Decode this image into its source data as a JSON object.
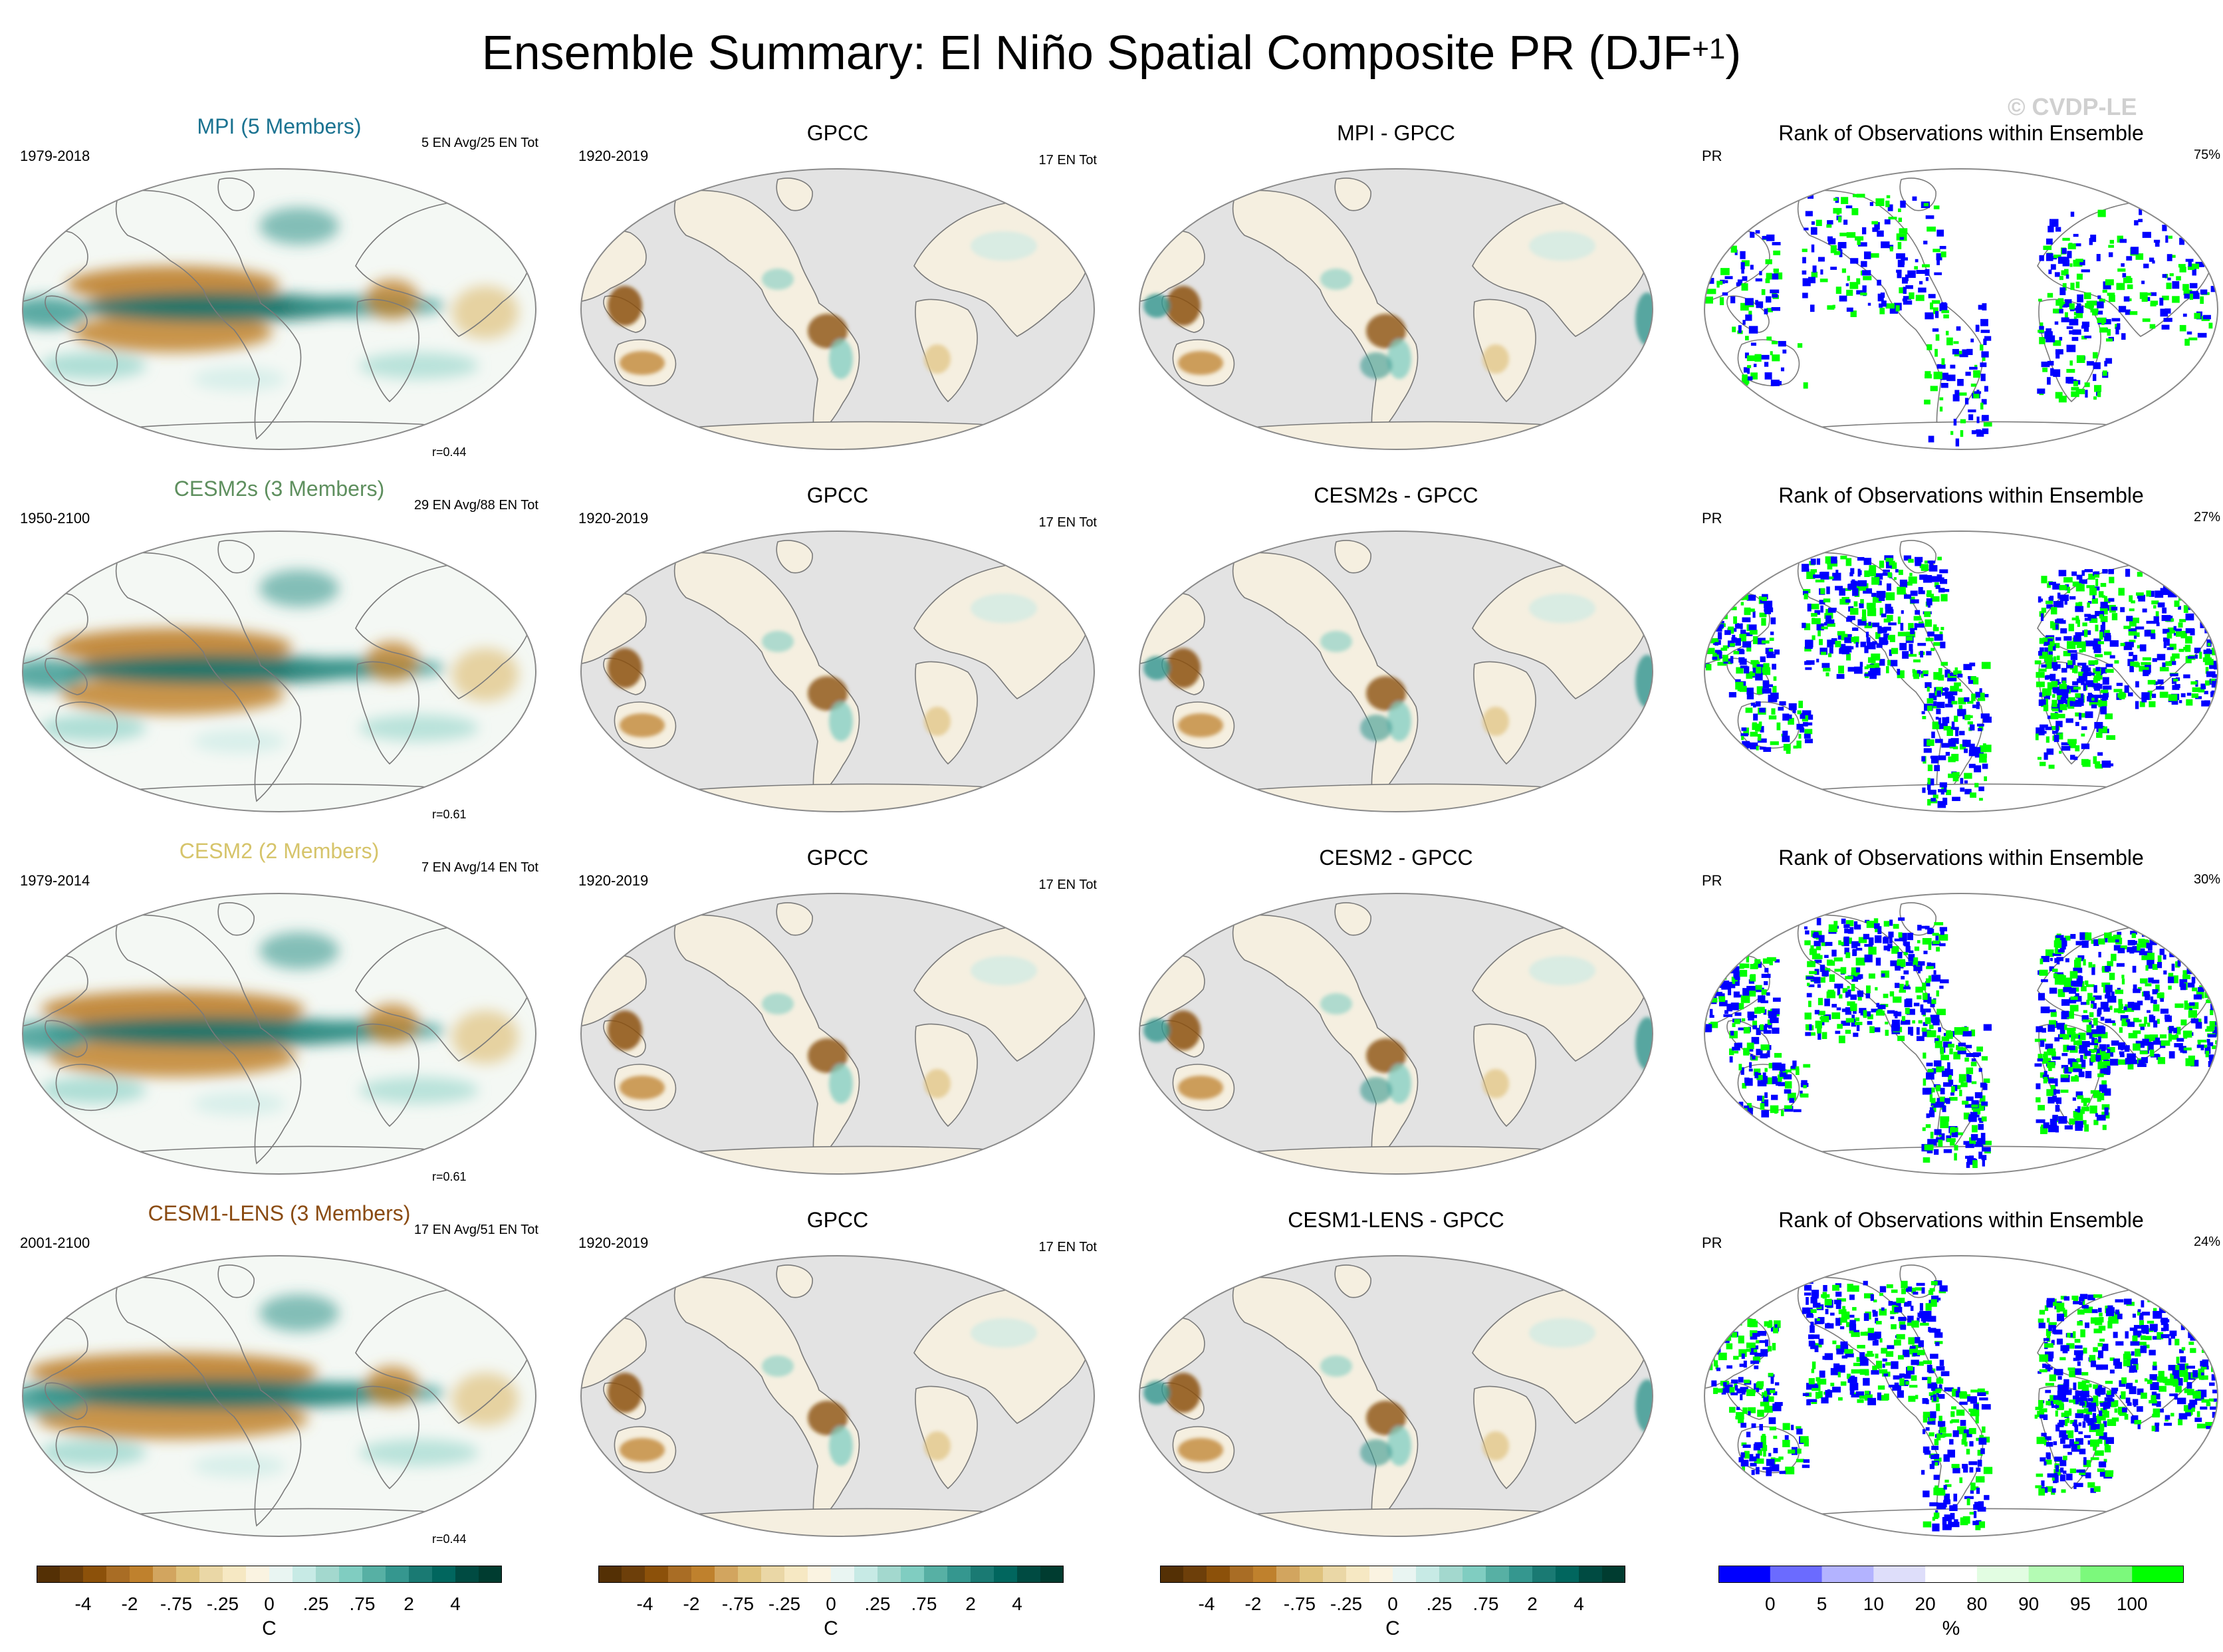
{
  "figure": {
    "title": "Ensemble Summary: El Niño Spatial Composite PR (DJF",
    "title_sup": "+1",
    "title_close": ")",
    "watermark": "© CVDP-LE"
  },
  "rows": [
    {
      "model": {
        "title": "MPI (5 Members)",
        "color": "#1b7391",
        "years": "1979-2018",
        "events": "5 EN Avg/25 EN Tot",
        "corr": "r=0.44"
      },
      "obs": {
        "title": "GPCC",
        "years": "1920-2019",
        "events": "17 EN Tot"
      },
      "diff": {
        "title": "MPI - GPCC"
      },
      "rank": {
        "title": "Rank of Observations within Ensemble",
        "var": "PR",
        "pct": "75%"
      }
    },
    {
      "model": {
        "title": "CESM2s (3 Members)",
        "color": "#5e8f5e",
        "years": "1950-2100",
        "events": "29 EN Avg/88 EN Tot",
        "corr": "r=0.61"
      },
      "obs": {
        "title": "GPCC",
        "years": "1920-2019",
        "events": "17 EN Tot"
      },
      "diff": {
        "title": "CESM2s - GPCC"
      },
      "rank": {
        "title": "Rank of Observations within Ensemble",
        "var": "PR",
        "pct": "27%"
      }
    },
    {
      "model": {
        "title": "CESM2 (2 Members)",
        "color": "#d6c46a",
        "years": "1979-2014",
        "events": "7 EN Avg/14 EN Tot",
        "corr": "r=0.61"
      },
      "obs": {
        "title": "GPCC",
        "years": "1920-2019",
        "events": "17 EN Tot"
      },
      "diff": {
        "title": "CESM2 - GPCC"
      },
      "rank": {
        "title": "Rank of Observations within Ensemble",
        "var": "PR",
        "pct": "30%"
      }
    },
    {
      "model": {
        "title": "CESM1-LENS (3 Members)",
        "color": "#8a4b12",
        "years": "2001-2100",
        "events": "17 EN Avg/51 EN Tot",
        "corr": "r=0.44"
      },
      "obs": {
        "title": "GPCC",
        "years": "1920-2019",
        "events": "17 EN Tot"
      },
      "diff": {
        "title": "CESM1-LENS - GPCC"
      },
      "rank": {
        "title": "Rank of Observations within Ensemble",
        "var": "PR",
        "pct": "24%"
      }
    }
  ],
  "colorbars": [
    {
      "unit": "C",
      "ticks": [
        "-4",
        "-2",
        "-.75",
        "-.25",
        "0",
        ".25",
        ".75",
        "2",
        "4"
      ],
      "colors": [
        "#543005",
        "#6d3f0a",
        "#8c510a",
        "#a96d25",
        "#bf812d",
        "#d2a55f",
        "#dfc27d",
        "#ead7a6",
        "#f6e8c3",
        "#faf3e1",
        "#e9f5f2",
        "#c7eae5",
        "#a3d8ce",
        "#80cdc1",
        "#57b0a4",
        "#35978f",
        "#1a7a73",
        "#01665e",
        "#004b42",
        "#003c30"
      ]
    },
    {
      "unit": "C",
      "ticks": [
        "-4",
        "-2",
        "-.75",
        "-.25",
        "0",
        ".25",
        ".75",
        "2",
        "4"
      ],
      "colors": [
        "#543005",
        "#6d3f0a",
        "#8c510a",
        "#a96d25",
        "#bf812d",
        "#d2a55f",
        "#dfc27d",
        "#ead7a6",
        "#f6e8c3",
        "#faf3e1",
        "#e9f5f2",
        "#c7eae5",
        "#a3d8ce",
        "#80cdc1",
        "#57b0a4",
        "#35978f",
        "#1a7a73",
        "#01665e",
        "#004b42",
        "#003c30"
      ]
    },
    {
      "unit": "C",
      "ticks": [
        "-4",
        "-2",
        "-.75",
        "-.25",
        "0",
        ".25",
        ".75",
        "2",
        "4"
      ],
      "colors": [
        "#543005",
        "#6d3f0a",
        "#8c510a",
        "#a96d25",
        "#bf812d",
        "#d2a55f",
        "#dfc27d",
        "#ead7a6",
        "#f6e8c3",
        "#faf3e1",
        "#e9f5f2",
        "#c7eae5",
        "#a3d8ce",
        "#80cdc1",
        "#57b0a4",
        "#35978f",
        "#1a7a73",
        "#01665e",
        "#004b42",
        "#003c30"
      ]
    },
    {
      "unit": "%",
      "ticks": [
        "0",
        "5",
        "10",
        "20",
        "80",
        "90",
        "95",
        "100"
      ],
      "colors": [
        "#0000ff",
        "#6b6bff",
        "#b3b3ff",
        "#dedefa",
        "#ffffff",
        "#e2fde2",
        "#b4fbb4",
        "#7cf97c",
        "#00ff00"
      ]
    }
  ]
}
